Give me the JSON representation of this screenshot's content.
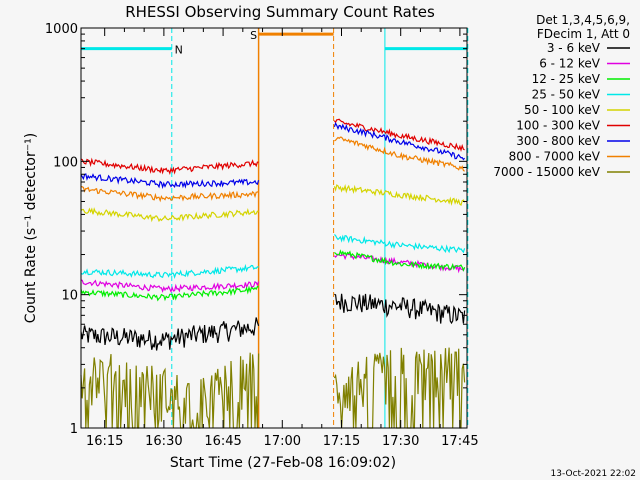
{
  "chart_data": {
    "type": "line",
    "title": "RHESSI Observing Summary Count Rates",
    "xlabel": "Start Time (27-Feb-08 16:09:02)",
    "ylabel": "Count Rate (s⁻¹ detector⁻¹)",
    "yscale": "log",
    "ylim": [
      1,
      1000
    ],
    "xlim_minutes": [
      16.15,
      17.78
    ],
    "x_ticks": [
      "16:15",
      "16:30",
      "16:45",
      "17:00",
      "17:15",
      "17:30",
      "17:45"
    ],
    "y_ticks": [
      "1",
      "10",
      "100",
      "1000"
    ],
    "legend_header": [
      "Det 1,3,4,5,6,9,",
      "FDecim 1, Att 0"
    ],
    "legend_position": "top-right, outside plot",
    "footer": "13-Oct-2021 22:02",
    "gap": [
      "16:54",
      "17:13"
    ],
    "series": [
      {
        "name": "3 - 6 keV",
        "color": "#000000",
        "seg1": [
          [
            16.15,
            5.0
          ],
          [
            16.5,
            4.6
          ],
          [
            16.9,
            5.8
          ]
        ],
        "seg2": [
          [
            17.22,
            9.0
          ],
          [
            17.5,
            8.2
          ],
          [
            17.77,
            6.8
          ]
        ]
      },
      {
        "name": "6 - 12 keV",
        "color": "#e000e0",
        "seg1": [
          [
            16.15,
            12.5
          ],
          [
            16.5,
            11.0
          ],
          [
            16.9,
            12.0
          ]
        ],
        "seg2": [
          [
            17.22,
            20.0
          ],
          [
            17.5,
            17.5
          ],
          [
            17.77,
            15.5
          ]
        ]
      },
      {
        "name": "12 - 25 keV",
        "color": "#00ee00",
        "seg1": [
          [
            16.15,
            10.5
          ],
          [
            16.5,
            9.5
          ],
          [
            16.9,
            11.0
          ]
        ],
        "seg2": [
          [
            17.22,
            21.0
          ],
          [
            17.5,
            17.0
          ],
          [
            17.77,
            16.0
          ]
        ]
      },
      {
        "name": "25 - 50 keV",
        "color": "#00e8e8",
        "seg1": [
          [
            16.15,
            15.0
          ],
          [
            16.5,
            14.0
          ],
          [
            16.9,
            16.0
          ]
        ],
        "seg2": [
          [
            17.22,
            27.0
          ],
          [
            17.5,
            23.5
          ],
          [
            17.77,
            21.5
          ]
        ]
      },
      {
        "name": "50 - 100 keV",
        "color": "#d4d400",
        "seg1": [
          [
            16.15,
            43.0
          ],
          [
            16.5,
            37.0
          ],
          [
            16.9,
            42.0
          ]
        ],
        "seg2": [
          [
            17.22,
            64.0
          ],
          [
            17.5,
            56.0
          ],
          [
            17.77,
            49.0
          ]
        ]
      },
      {
        "name": "100 - 300 keV",
        "color": "#e00000",
        "seg1": [
          [
            16.15,
            100.0
          ],
          [
            16.5,
            85.0
          ],
          [
            16.9,
            97.0
          ]
        ],
        "seg2": [
          [
            17.22,
            200.0
          ],
          [
            17.5,
            155.0
          ],
          [
            17.77,
            125.0
          ]
        ]
      },
      {
        "name": "300 - 800 keV",
        "color": "#0000e8",
        "seg1": [
          [
            16.15,
            78.0
          ],
          [
            16.5,
            67.0
          ],
          [
            16.9,
            70.0
          ]
        ],
        "seg2": [
          [
            17.22,
            185.0
          ],
          [
            17.5,
            140.0
          ],
          [
            17.77,
            105.0
          ]
        ]
      },
      {
        "name": "800 - 7000 keV",
        "color": "#f08000",
        "seg1": [
          [
            16.15,
            62.0
          ],
          [
            16.5,
            53.0
          ],
          [
            16.9,
            57.0
          ]
        ],
        "seg2": [
          [
            17.22,
            150.0
          ],
          [
            17.5,
            110.0
          ],
          [
            17.77,
            88.0
          ]
        ]
      },
      {
        "name": "7000 - 15000 keV",
        "color": "#808000",
        "seg1": [
          [
            16.15,
            2.8
          ],
          [
            16.65,
            1.6
          ],
          [
            16.9,
            2.8
          ]
        ],
        "seg2": [
          [
            17.22,
            2.0
          ],
          [
            17.5,
            2.8
          ],
          [
            17.77,
            2.8
          ]
        ]
      }
    ],
    "markers": [
      {
        "label": "N",
        "color": "#00e8e8",
        "start": "16:09",
        "end": "16:32",
        "bar_y": 700
      },
      {
        "label": "S",
        "color": "#f08000",
        "start": "16:54",
        "end": "17:13",
        "bar_y": 900
      },
      {
        "label": "",
        "color": "#00e8e8",
        "start": "17:26",
        "end": "17:47",
        "bar_y": 700
      }
    ]
  }
}
